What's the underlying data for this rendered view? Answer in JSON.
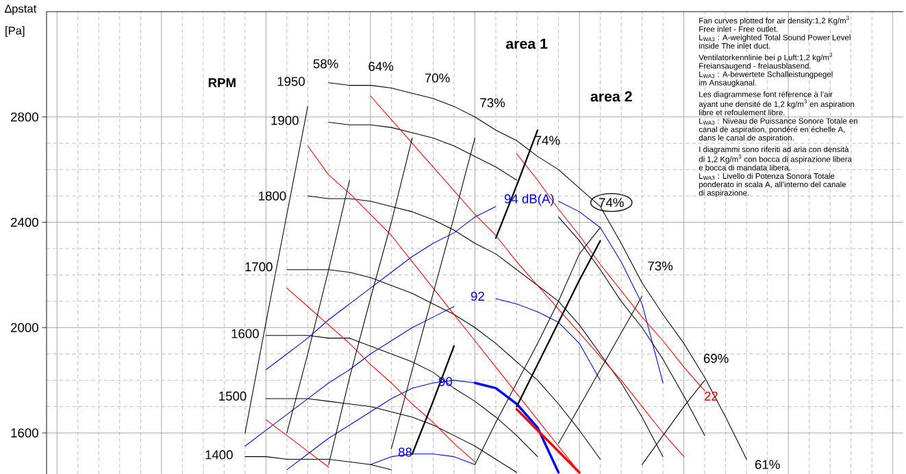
{
  "chart_data": {
    "type": "line",
    "ylabel": "∆pstat [Pa]",
    "categories": [
      null,
      null,
      null,
      null,
      null,
      null,
      null,
      null,
      null,
      null,
      null,
      null,
      null,
      null,
      null,
      null,
      null,
      null,
      null,
      null,
      null,
      null,
      null,
      null,
      null,
      null,
      null,
      null,
      null,
      null,
      null,
      null,
      null,
      null,
      null,
      null,
      null,
      null,
      null,
      null,
      null
    ],
    "ylim": [
      1444,
      3200
    ],
    "yticks": [
      1600,
      2000,
      2400,
      2800
    ],
    "grid": true,
    "tick_labels": "y",
    "series": [
      {
        "name": "1950",
        "color": "#000000",
        "values": [
          null,
          null,
          null,
          null,
          null,
          null,
          null,
          null,
          null,
          null,
          null,
          null,
          null,
          2930,
          2920,
          2920,
          2910,
          2890,
          2870,
          2840,
          2800,
          2750,
          2710,
          2650,
          2600,
          2530,
          2460,
          2320,
          2170,
          2050,
          1940,
          1810,
          1660,
          1500,
          null,
          null,
          null,
          null,
          null,
          null,
          null
        ]
      },
      {
        "name": "1900",
        "color": "#000000",
        "values": [
          null,
          null,
          null,
          null,
          null,
          null,
          null,
          null,
          null,
          null,
          null,
          null,
          null,
          2780,
          2770,
          2770,
          2760,
          2740,
          2720,
          2690,
          2650,
          2610,
          2560,
          null,
          2420,
          2330,
          2220,
          2100,
          2000,
          1880,
          1740,
          1590,
          null,
          null,
          null,
          null,
          null,
          null,
          null,
          null,
          null
        ]
      },
      {
        "name": "1800",
        "color": "#000000",
        "values": [
          null,
          null,
          null,
          null,
          null,
          null,
          null,
          null,
          null,
          null,
          null,
          null,
          2500,
          2490,
          2490,
          2480,
          2460,
          2440,
          2410,
          2370,
          2320,
          2280,
          2220,
          2160,
          2100,
          2010,
          1900,
          1790,
          1660,
          1510,
          null,
          null,
          null,
          null,
          null,
          null,
          null,
          null,
          null,
          null,
          null
        ]
      },
      {
        "name": "1700",
        "color": "#000000",
        "values": [
          null,
          null,
          null,
          null,
          null,
          null,
          null,
          null,
          null,
          null,
          null,
          2220,
          2220,
          2220,
          2210,
          2190,
          2160,
          2130,
          2090,
          2050,
          2000,
          1940,
          1870,
          1800,
          1710,
          1610,
          1500,
          null,
          null,
          null,
          null,
          null,
          null,
          null,
          null,
          null,
          null,
          null,
          null,
          null,
          null
        ]
      },
      {
        "name": "1600",
        "color": "#000000",
        "values": [
          null,
          null,
          null,
          null,
          null,
          null,
          null,
          null,
          null,
          null,
          1970,
          1970,
          1970,
          1960,
          1960,
          1930,
          1900,
          1870,
          1830,
          1770,
          1720,
          1660,
          1590,
          1510,
          null,
          null,
          null,
          null,
          null,
          null,
          null,
          null,
          null,
          null,
          null,
          null,
          null,
          null,
          null,
          null,
          null
        ]
      },
      {
        "name": "1500",
        "color": "#000000",
        "values": [
          null,
          null,
          null,
          null,
          null,
          null,
          null,
          null,
          null,
          null,
          1730,
          1730,
          1730,
          1720,
          1710,
          1700,
          1680,
          1660,
          1630,
          1590,
          1550,
          1500,
          1450,
          null,
          null,
          null,
          null,
          null,
          null,
          null,
          null,
          null,
          null,
          null,
          null,
          null,
          null,
          null,
          null,
          null,
          null
        ]
      },
      {
        "name": "1400",
        "color": "#000000",
        "values": [
          null,
          null,
          null,
          null,
          null,
          null,
          null,
          null,
          null,
          1510,
          1510,
          1500,
          1500,
          1500,
          1490,
          1480,
          1460,
          null,
          null,
          null,
          null,
          null,
          null,
          null,
          null,
          null,
          null,
          null,
          null,
          null,
          null,
          null,
          null,
          null,
          null,
          null,
          null,
          null,
          null,
          null,
          null
        ]
      },
      {
        "color": "#000000",
        "values": [
          null,
          null,
          null,
          null,
          null,
          null,
          null,
          null,
          null,
          1600,
          2020,
          2430,
          2840,
          null,
          null,
          null,
          null,
          null,
          null,
          null,
          null,
          null,
          null,
          null,
          null,
          null,
          null,
          null,
          null,
          null,
          null,
          null,
          null,
          null,
          null,
          null,
          null,
          null,
          null,
          null,
          null
        ]
      },
      {
        "name": "94 dB(A)",
        "color": "#0000ff",
        "values": [
          null,
          null,
          null,
          null,
          null,
          null,
          null,
          null,
          null,
          null,
          1840,
          1900,
          1960,
          2030,
          2090,
          2150,
          2210,
          2270,
          2320,
          2360,
          2420,
          2460,
          null,
          null,
          2480,
          2440,
          2380,
          2250,
          2090,
          1790,
          null,
          null,
          null,
          null,
          null,
          null,
          null,
          null,
          null,
          null,
          null
        ]
      },
      {
        "name": "92",
        "color": "#0000ff",
        "values": [
          null,
          null,
          null,
          null,
          null,
          null,
          null,
          null,
          null,
          1550,
          1610,
          1670,
          1730,
          1790,
          1840,
          1900,
          1950,
          2000,
          2040,
          2080,
          null,
          2110,
          2090,
          2060,
          2020,
          1940,
          1800,
          null,
          null,
          null,
          null,
          null,
          null,
          null,
          null,
          null,
          null,
          null,
          null,
          null,
          null
        ]
      },
      {
        "name": "90",
        "color": "#0000ff",
        "values": [
          null,
          null,
          null,
          null,
          null,
          null,
          null,
          null,
          null,
          null,
          null,
          1460,
          1520,
          1580,
          1630,
          1680,
          1730,
          1770,
          1790,
          1800,
          1790,
          1770,
          1710,
          1620,
          1450,
          null,
          null,
          null,
          null,
          null,
          null,
          null,
          null,
          null,
          null,
          null,
          null,
          null,
          null,
          null,
          null
        ]
      },
      {
        "name": "88",
        "color": "#0000ff",
        "values": [
          null,
          null,
          null,
          null,
          null,
          null,
          null,
          null,
          null,
          null,
          null,
          null,
          null,
          null,
          null,
          1480,
          1510,
          1520,
          1520,
          1510,
          1480,
          null,
          null,
          null,
          null,
          null,
          null,
          null,
          null,
          null,
          null,
          null,
          null,
          null,
          null,
          null,
          null,
          null,
          null,
          null,
          null
        ]
      },
      {
        "color": "#0000ff",
        "values": [
          null,
          null,
          null,
          null,
          null,
          null,
          null,
          null,
          null,
          null,
          null,
          null,
          null,
          null,
          null,
          null,
          null,
          null,
          null,
          null,
          1790,
          1770,
          1710,
          1620,
          1450,
          null,
          null,
          null,
          null,
          null,
          null,
          null,
          null,
          null,
          null,
          null,
          null,
          null,
          null,
          null,
          null
        ]
      },
      {
        "color": "#ff0000",
        "values": [
          null,
          null,
          null,
          null,
          null,
          null,
          null,
          null,
          null,
          null,
          null,
          null,
          2690,
          2580,
          2510,
          2430,
          2350,
          2250,
          2150,
          2050,
          1950,
          1850,
          1750,
          1650,
          1550,
          1450,
          null,
          null,
          null,
          null,
          null,
          null,
          null,
          null,
          null,
          null,
          null,
          null,
          null,
          null,
          null
        ]
      },
      {
        "color": "#ff0000",
        "values": [
          null,
          null,
          null,
          null,
          null,
          null,
          null,
          null,
          null,
          null,
          null,
          null,
          null,
          null,
          null,
          2880,
          2790,
          2700,
          2610,
          2520,
          2430,
          2350,
          2250,
          2160,
          2070,
          1980,
          1890,
          1800,
          1700,
          1600,
          1510,
          null,
          null,
          null,
          null,
          null,
          null,
          null,
          null,
          null,
          null
        ]
      },
      {
        "name": "22",
        "color": "#ff0000",
        "values": [
          null,
          null,
          null,
          null,
          null,
          null,
          null,
          null,
          null,
          null,
          null,
          null,
          null,
          null,
          null,
          null,
          null,
          null,
          null,
          null,
          null,
          null,
          2660,
          2560,
          2450,
          2350,
          2240,
          2140,
          2040,
          1950,
          1850,
          1760,
          null,
          null,
          null,
          null,
          null,
          null,
          null,
          null,
          null
        ]
      },
      {
        "color": "#ff0000",
        "values": [
          null,
          null,
          null,
          null,
          null,
          null,
          null,
          null,
          null,
          null,
          null,
          2150,
          2080,
          2010,
          1940,
          1860,
          1790,
          1710,
          1640,
          1560,
          1490,
          null,
          null,
          null,
          null,
          null,
          null,
          null,
          null,
          null,
          null,
          null,
          null,
          null,
          null,
          null,
          null,
          null,
          null,
          null,
          null
        ]
      },
      {
        "color": "#ff0000",
        "values": [
          null,
          null,
          null,
          null,
          null,
          null,
          null,
          null,
          null,
          null,
          1650,
          1590,
          1530,
          1470,
          null,
          null,
          null,
          null,
          null,
          null,
          null,
          null,
          null,
          null,
          null,
          null,
          null,
          null,
          null,
          null,
          null,
          null,
          null,
          null,
          null,
          null,
          null,
          null,
          null,
          null,
          null
        ]
      },
      {
        "color": "#ff0000",
        "values": [
          null,
          null,
          null,
          null,
          null,
          null,
          null,
          null,
          null,
          null,
          null,
          null,
          null,
          null,
          null,
          null,
          null,
          null,
          null,
          null,
          null,
          null,
          1690,
          1610,
          1530,
          1450,
          null,
          null,
          null,
          null,
          null,
          null,
          null,
          null,
          null,
          null,
          null,
          null,
          null,
          null,
          null
        ]
      },
      {
        "color": "#000000",
        "values": [
          null,
          null,
          null,
          null,
          null,
          null,
          null,
          null,
          null,
          null,
          null,
          1600,
          1900,
          2220,
          2560,
          null,
          null,
          null,
          null,
          null,
          null,
          null,
          null,
          null,
          null,
          null,
          null,
          null,
          null,
          null,
          null,
          null,
          null,
          null,
          null,
          null,
          null,
          null,
          null,
          null,
          null
        ]
      },
      {
        "color": "#000000",
        "values": [
          null,
          null,
          null,
          null,
          null,
          null,
          null,
          null,
          null,
          null,
          null,
          null,
          null,
          1480,
          1810,
          2110,
          2400,
          2720,
          null,
          null,
          null,
          null,
          null,
          null,
          null,
          null,
          null,
          null,
          null,
          null,
          null,
          null,
          null,
          null,
          null,
          null,
          null,
          null,
          null,
          null,
          null
        ]
      },
      {
        "color": "#000000",
        "values": [
          null,
          null,
          null,
          null,
          null,
          null,
          null,
          null,
          null,
          null,
          null,
          null,
          null,
          null,
          null,
          null,
          1540,
          1840,
          2130,
          2420,
          2720,
          null,
          null,
          null,
          null,
          null,
          null,
          null,
          null,
          null,
          null,
          null,
          null,
          null,
          null,
          null,
          null,
          null,
          null,
          null,
          null
        ]
      },
      {
        "color": "#000000",
        "values": [
          null,
          null,
          null,
          null,
          null,
          null,
          null,
          null,
          null,
          null,
          null,
          null,
          null,
          null,
          null,
          null,
          null,
          null,
          null,
          null,
          1480,
          1640,
          1790,
          1940,
          2100,
          2280,
          2380,
          null,
          null,
          null,
          null,
          null,
          null,
          null,
          null,
          null,
          null,
          null,
          null,
          null,
          null
        ]
      },
      {
        "color": "#000000",
        "values": [
          null,
          null,
          null,
          null,
          null,
          null,
          null,
          null,
          null,
          null,
          null,
          null,
          null,
          null,
          null,
          null,
          null,
          null,
          null,
          null,
          null,
          null,
          null,
          null,
          1560,
          1700,
          1840,
          1980,
          2120,
          null,
          null,
          null,
          null,
          null,
          null,
          null,
          null,
          null,
          null,
          null,
          null
        ]
      },
      {
        "color": "#000000",
        "values": [
          null,
          null,
          null,
          null,
          null,
          null,
          null,
          null,
          null,
          null,
          null,
          null,
          null,
          null,
          null,
          null,
          null,
          null,
          null,
          null,
          null,
          null,
          null,
          null,
          null,
          null,
          null,
          null,
          1480,
          1590,
          1700,
          1800,
          null,
          null,
          null,
          null,
          null,
          null,
          null,
          null,
          null
        ]
      },
      {
        "color": "#000000",
        "values": [
          null,
          null,
          null,
          null,
          null,
          null,
          null,
          null,
          null,
          null,
          null,
          null,
          null,
          null,
          null,
          null,
          null,
          1520,
          1720,
          1930,
          null,
          2340,
          2540,
          2750,
          null,
          null,
          null,
          null,
          null,
          null,
          null,
          null,
          null,
          null,
          null,
          null,
          null,
          null,
          null,
          null,
          null
        ]
      },
      {
        "color": "#000000",
        "values": [
          null,
          null,
          null,
          null,
          null,
          null,
          null,
          null,
          null,
          null,
          null,
          null,
          null,
          null,
          null,
          null,
          null,
          null,
          null,
          null,
          null,
          null,
          1700,
          1860,
          2020,
          2180,
          2330,
          null,
          null,
          null,
          null,
          null,
          null,
          null,
          null,
          null,
          null,
          null,
          null,
          null,
          null
        ]
      }
    ],
    "annotations": [
      "Fan curves plotted for air density:1,2 Kg/m$^{3}$",
      "Free inlet - Free outlet.",
      "L$_{WA3}$ : A-weighted Total Sound Power Level",
      "inside The inlet duct.",
      "Ventilatorkennlinie bei ρ Luft:1,2 kg/m$^{3}$",
      "Freiansaugend - freiausblasend.",
      "L$_{WA3}$ : A-bewertete Schalleistungpegel",
      "im Ansaugkanal.",
      "Les diagrammese font réference à l’air",
      "ayant une densité de 1,2 kg/m$^{3}$ en aspiration",
      "libre et refoulement libre.",
      "L$_{WA3}$ : Niveau de Puissance Sonore Totale en",
      "canal de aspiration, pondéré en échelle A,",
      "dans le canal de aspiration.",
      "I diagrammi sono riferiti ad aria con densità",
      "di 1,2 Kg/m$^{3}$ con bocca di aspirazione libera",
      "e bocca di mandata libera.",
      "L$_{WA3}$ : Livello di Potenza Sonora Totale",
      "ponderato in scala A, all’interno del canale",
      "di aspirazione.",
      "RPM",
      "58%",
      "64%",
      "70%",
      "73%",
      "74%",
      "74%",
      "73%",
      "69%",
      "61%",
      "area 1",
      "area 2"
    ]
  }
}
